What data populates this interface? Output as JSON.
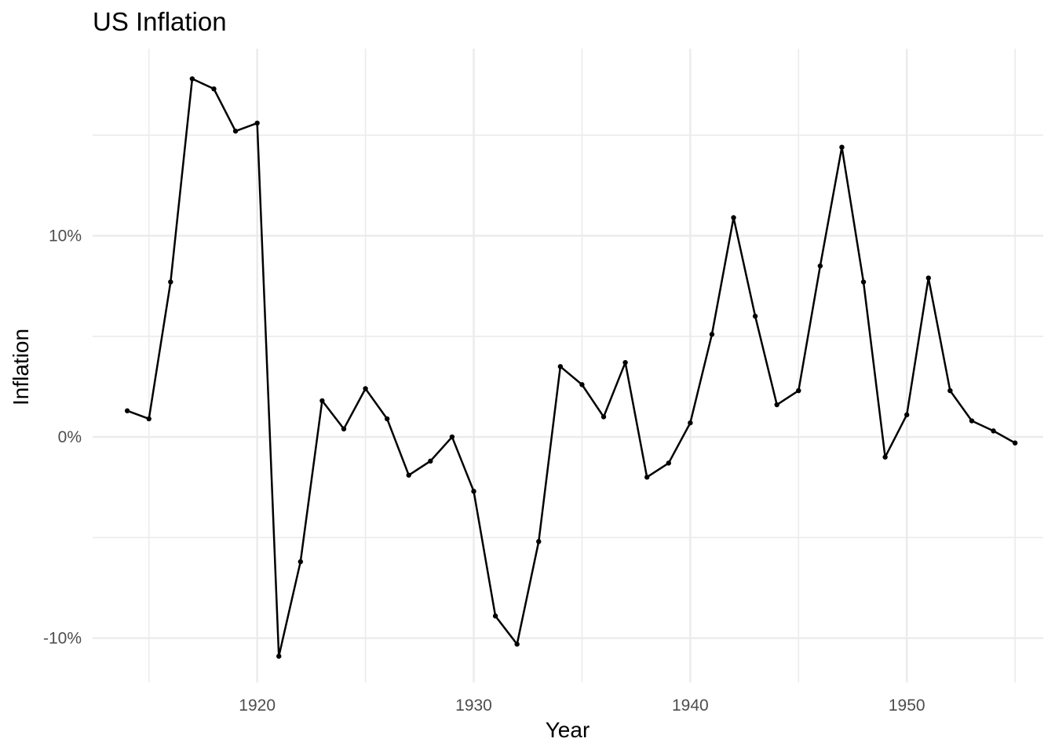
{
  "chart_data": {
    "type": "line",
    "title": "US Inflation",
    "xlabel": "Year",
    "ylabel": "Inflation",
    "x_ticks": [
      {
        "value": 1920,
        "label": "1920"
      },
      {
        "value": 1930,
        "label": "1930"
      },
      {
        "value": 1940,
        "label": "1940"
      },
      {
        "value": 1950,
        "label": "1950"
      }
    ],
    "x_minor_gridlines": [
      1915,
      1925,
      1935,
      1945,
      1955
    ],
    "y_ticks": [
      {
        "value": 10,
        "label": "10%"
      },
      {
        "value": 0,
        "label": "0%"
      },
      {
        "value": -10,
        "label": "-10%"
      }
    ],
    "y_minor_gridlines": [
      15,
      5,
      -5
    ],
    "xlim": [
      1912.4,
      1956.3
    ],
    "ylim": [
      -12.2,
      19.3
    ],
    "grid": true,
    "series": [
      {
        "color": "#000000",
        "x": [
          1914,
          1915,
          1916,
          1917,
          1918,
          1919,
          1920,
          1921,
          1922,
          1923,
          1924,
          1925,
          1926,
          1927,
          1928,
          1929,
          1930,
          1931,
          1932,
          1933,
          1934,
          1935,
          1936,
          1937,
          1938,
          1939,
          1940,
          1941,
          1942,
          1943,
          1944,
          1945,
          1946,
          1947,
          1948,
          1949,
          1950,
          1951,
          1952,
          1953,
          1954,
          1955
        ],
        "values": [
          1.3,
          0.9,
          7.7,
          17.8,
          17.3,
          15.2,
          15.6,
          -10.9,
          -6.2,
          1.8,
          0.4,
          2.4,
          0.9,
          -1.9,
          -1.2,
          0.0,
          -2.7,
          -8.9,
          -10.3,
          -5.2,
          3.5,
          2.6,
          1.0,
          3.7,
          -2.0,
          -1.3,
          0.7,
          5.1,
          10.9,
          6.0,
          1.6,
          2.3,
          8.5,
          14.4,
          7.7,
          -1.0,
          1.1,
          7.9,
          2.3,
          0.8,
          0.3,
          -0.3
        ]
      }
    ]
  }
}
